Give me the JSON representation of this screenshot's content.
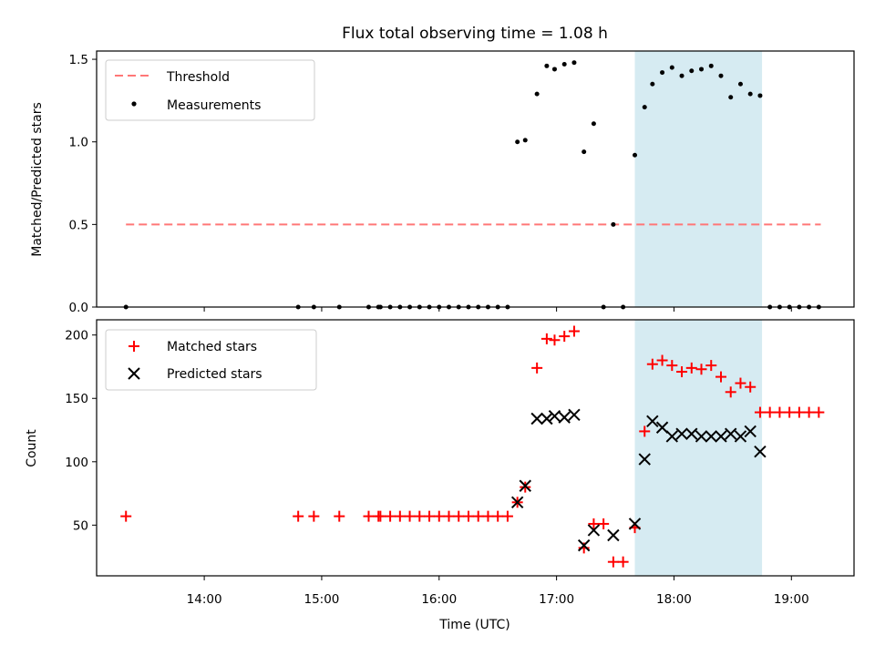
{
  "chart_data": [
    {
      "type": "scatter",
      "title": "Flux total observing time = 1.08 h",
      "xlabel": "",
      "ylabel": "Matched/Predicted stars",
      "ylim": [
        0,
        1.55
      ],
      "yticks": [
        "0.0",
        "0.5",
        "1.0",
        "1.5"
      ],
      "xlim": [
        "13:05",
        "19:32"
      ],
      "grid": false,
      "legend_position": "top-left",
      "highlight_span": [
        "17:40",
        "18:45"
      ],
      "threshold": {
        "name": "Threshold",
        "value": 0.5,
        "x_start": "13:20",
        "x_end": "19:15",
        "color": "#ff7777"
      },
      "series": [
        {
          "name": "Measurements",
          "marker": "dot",
          "color": "#000000",
          "points": [
            [
              "13:20",
              0
            ],
            [
              "14:48",
              0
            ],
            [
              "14:56",
              0
            ],
            [
              "15:09",
              0
            ],
            [
              "15:24",
              0
            ],
            [
              "15:29",
              0
            ],
            [
              "15:30",
              0
            ],
            [
              "15:35",
              0
            ],
            [
              "15:40",
              0
            ],
            [
              "15:45",
              0
            ],
            [
              "15:50",
              0
            ],
            [
              "15:55",
              0
            ],
            [
              "16:00",
              0
            ],
            [
              "16:05",
              0
            ],
            [
              "16:10",
              0
            ],
            [
              "16:15",
              0
            ],
            [
              "16:20",
              0
            ],
            [
              "16:25",
              0
            ],
            [
              "16:30",
              0
            ],
            [
              "16:35",
              0
            ],
            [
              "16:40",
              1.0
            ],
            [
              "16:44",
              1.01
            ],
            [
              "16:50",
              1.29
            ],
            [
              "16:55",
              1.46
            ],
            [
              "16:59",
              1.44
            ],
            [
              "17:04",
              1.47
            ],
            [
              "17:09",
              1.48
            ],
            [
              "17:14",
              0.94
            ],
            [
              "17:19",
              1.11
            ],
            [
              "17:24",
              0
            ],
            [
              "17:29",
              0.5
            ],
            [
              "17:34",
              0
            ],
            [
              "17:40",
              0.92
            ],
            [
              "17:45",
              1.21
            ],
            [
              "17:49",
              1.35
            ],
            [
              "17:54",
              1.42
            ],
            [
              "17:59",
              1.45
            ],
            [
              "18:04",
              1.4
            ],
            [
              "18:09",
              1.43
            ],
            [
              "18:14",
              1.44
            ],
            [
              "18:19",
              1.46
            ],
            [
              "18:24",
              1.4
            ],
            [
              "18:29",
              1.27
            ],
            [
              "18:34",
              1.35
            ],
            [
              "18:39",
              1.29
            ],
            [
              "18:44",
              1.28
            ],
            [
              "18:49",
              0
            ],
            [
              "18:54",
              0
            ],
            [
              "18:59",
              0
            ],
            [
              "19:04",
              0
            ],
            [
              "19:09",
              0
            ],
            [
              "19:14",
              0
            ]
          ]
        }
      ]
    },
    {
      "type": "scatter",
      "title": "",
      "xlabel": "Time (UTC)",
      "ylabel": "Count",
      "ylim": [
        10,
        212
      ],
      "yticks": [
        "50",
        "100",
        "150",
        "200"
      ],
      "xlim": [
        "13:05",
        "19:32"
      ],
      "xticks": [
        "14:00",
        "15:00",
        "16:00",
        "17:00",
        "18:00",
        "19:00"
      ],
      "grid": false,
      "legend_position": "top-left",
      "highlight_span": [
        "17:40",
        "18:45"
      ],
      "series": [
        {
          "name": "Matched stars",
          "marker": "plus",
          "color": "#ff0000",
          "points": [
            [
              "13:20",
              57
            ],
            [
              "14:48",
              57
            ],
            [
              "14:56",
              57
            ],
            [
              "15:09",
              57
            ],
            [
              "15:24",
              57
            ],
            [
              "15:29",
              57
            ],
            [
              "15:30",
              57
            ],
            [
              "15:35",
              57
            ],
            [
              "15:40",
              57
            ],
            [
              "15:45",
              57
            ],
            [
              "15:50",
              57
            ],
            [
              "15:55",
              57
            ],
            [
              "16:00",
              57
            ],
            [
              "16:05",
              57
            ],
            [
              "16:10",
              57
            ],
            [
              "16:15",
              57
            ],
            [
              "16:20",
              57
            ],
            [
              "16:25",
              57
            ],
            [
              "16:30",
              57
            ],
            [
              "16:35",
              57
            ],
            [
              "16:40",
              68
            ],
            [
              "16:44",
              80
            ],
            [
              "16:50",
              174
            ],
            [
              "16:55",
              197
            ],
            [
              "16:59",
              196
            ],
            [
              "17:04",
              199
            ],
            [
              "17:09",
              203
            ],
            [
              "17:14",
              32
            ],
            [
              "17:19",
              51
            ],
            [
              "17:24",
              51
            ],
            [
              "17:29",
              21
            ],
            [
              "17:34",
              21
            ],
            [
              "17:40",
              48
            ],
            [
              "17:45",
              124
            ],
            [
              "17:49",
              177
            ],
            [
              "17:54",
              180
            ],
            [
              "17:59",
              176
            ],
            [
              "18:04",
              171
            ],
            [
              "18:09",
              174
            ],
            [
              "18:14",
              173
            ],
            [
              "18:19",
              176
            ],
            [
              "18:24",
              167
            ],
            [
              "18:29",
              155
            ],
            [
              "18:34",
              162
            ],
            [
              "18:39",
              159
            ],
            [
              "18:44",
              139
            ],
            [
              "18:49",
              139
            ],
            [
              "18:54",
              139
            ],
            [
              "18:59",
              139
            ],
            [
              "19:04",
              139
            ],
            [
              "19:09",
              139
            ],
            [
              "19:14",
              139
            ]
          ]
        },
        {
          "name": "Predicted stars",
          "marker": "x",
          "color": "#000000",
          "points": [
            [
              "16:40",
              68
            ],
            [
              "16:44",
              81
            ],
            [
              "16:50",
              134
            ],
            [
              "16:55",
              134
            ],
            [
              "16:59",
              136
            ],
            [
              "17:04",
              135
            ],
            [
              "17:09",
              137
            ],
            [
              "17:14",
              34
            ],
            [
              "17:19",
              46
            ],
            [
              "17:29",
              42
            ],
            [
              "17:40",
              51
            ],
            [
              "17:45",
              102
            ],
            [
              "17:49",
              132
            ],
            [
              "17:54",
              127
            ],
            [
              "17:59",
              120
            ],
            [
              "18:04",
              122
            ],
            [
              "18:09",
              122
            ],
            [
              "18:14",
              120
            ],
            [
              "18:19",
              120
            ],
            [
              "18:24",
              120
            ],
            [
              "18:29",
              122
            ],
            [
              "18:34",
              120
            ],
            [
              "18:39",
              124
            ],
            [
              "18:44",
              108
            ]
          ]
        }
      ]
    }
  ]
}
